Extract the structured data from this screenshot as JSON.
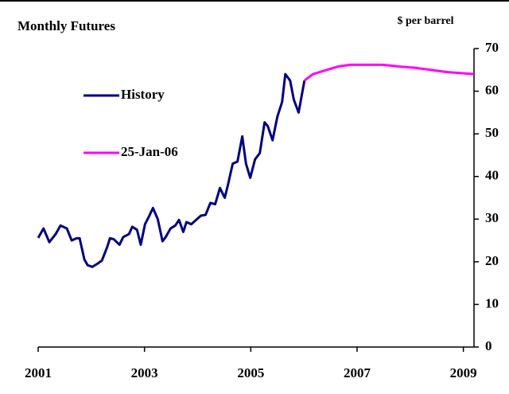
{
  "chart_data": {
    "type": "line",
    "title": "Monthly Futures",
    "y_axis_label": "$ per barrel",
    "xlim": [
      2001,
      2009.2
    ],
    "xticks": [
      2001,
      2003,
      2005,
      2007,
      2009
    ],
    "ylim": [
      0,
      70
    ],
    "yticks": [
      0,
      10,
      20,
      30,
      40,
      50,
      60,
      70
    ],
    "legend": "upper left",
    "series": [
      {
        "name": "History",
        "color": "#000080",
        "x": [
          2001.0,
          2001.1,
          2001.21,
          2001.33,
          2001.42,
          2001.54,
          2001.63,
          2001.72,
          2001.78,
          2001.87,
          2001.93,
          2002.02,
          2002.11,
          2002.2,
          2002.3,
          2002.35,
          2002.42,
          2002.53,
          2002.6,
          2002.71,
          2002.77,
          2002.86,
          2002.93,
          2003.01,
          2003.08,
          2003.16,
          2003.25,
          2003.34,
          2003.4,
          2003.49,
          2003.58,
          2003.65,
          2003.73,
          2003.79,
          2003.88,
          2003.97,
          2004.06,
          2004.15,
          2004.24,
          2004.33,
          2004.42,
          2004.51,
          2004.57,
          2004.66,
          2004.75,
          2004.84,
          2004.91,
          2004.99,
          2005.08,
          2005.17,
          2005.26,
          2005.32,
          2005.41,
          2005.5,
          2005.59,
          2005.65,
          2005.74,
          2005.81,
          2005.9,
          2006.01
        ],
        "values": [
          25.6,
          27.8,
          24.6,
          26.5,
          28.5,
          27.8,
          25.0,
          25.5,
          25.5,
          20.5,
          19.2,
          18.8,
          19.5,
          20.3,
          23.5,
          25.5,
          25.3,
          24.0,
          25.8,
          26.5,
          28.2,
          27.5,
          24.0,
          28.8,
          30.5,
          32.6,
          30.0,
          24.8,
          25.8,
          27.8,
          28.5,
          29.8,
          27.0,
          29.3,
          28.8,
          29.8,
          30.8,
          31.0,
          33.8,
          33.5,
          37.3,
          35.0,
          38.0,
          43.0,
          43.5,
          49.4,
          43.0,
          39.7,
          44.0,
          45.5,
          52.7,
          51.8,
          48.5,
          54.0,
          57.5,
          64.0,
          62.5,
          58.0,
          55.0,
          62.5
        ]
      },
      {
        "name": "25-Jan-06",
        "color": "#ff00ff",
        "x": [
          2006.01,
          2006.17,
          2006.43,
          2006.65,
          2006.88,
          2007.48,
          2007.78,
          2008.08,
          2008.38,
          2008.68,
          2009.2
        ],
        "values": [
          62.5,
          64.0,
          65.0,
          65.8,
          66.2,
          66.2,
          65.8,
          65.5,
          65.0,
          64.5,
          64.0
        ]
      }
    ]
  }
}
